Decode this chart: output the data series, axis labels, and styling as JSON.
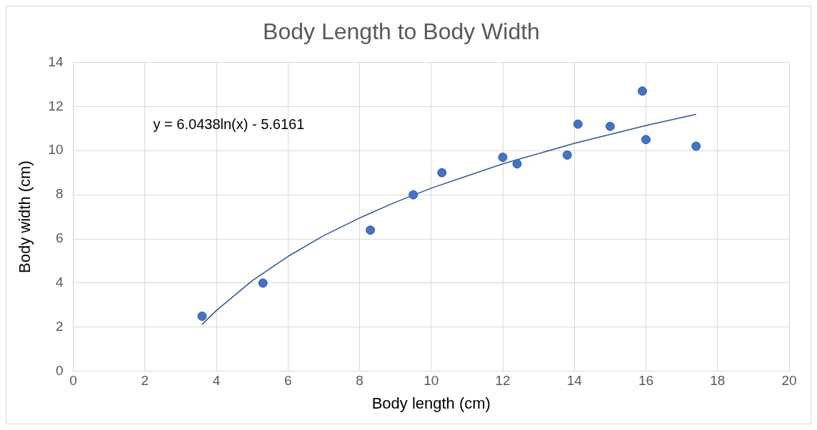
{
  "chart_data": {
    "type": "scatter",
    "title": "Body Length to Body Width",
    "xlabel": "Body length (cm)",
    "ylabel": "Body width (cm)",
    "x": [
      3.6,
      5.3,
      8.3,
      9.5,
      10.3,
      12.0,
      12.4,
      13.8,
      14.1,
      15.0,
      15.9,
      16.0,
      17.4
    ],
    "values": [
      2.5,
      4.0,
      6.4,
      8.0,
      9.0,
      9.7,
      9.4,
      9.8,
      11.2,
      11.1,
      12.7,
      10.5,
      10.2
    ],
    "color": "#4472c4",
    "marker": "circle",
    "series": [
      {
        "type": "line",
        "color": "#2f5597",
        "line_style": "solid",
        "marker": "none",
        "x": [
          3.6,
          4,
          5,
          6,
          7,
          8,
          9,
          10,
          12,
          14,
          16,
          17.4
        ],
        "values": [
          2.13,
          2.76,
          4.11,
          5.21,
          6.15,
          6.95,
          7.66,
          8.3,
          9.4,
          10.33,
          11.14,
          11.65
        ]
      }
    ],
    "xlim": [
      0,
      20
    ],
    "xticks": [
      0,
      2,
      4,
      6,
      8,
      10,
      12,
      14,
      16,
      18,
      20
    ],
    "ylim": [
      0,
      14
    ],
    "yticks": [
      0,
      2,
      4,
      6,
      8,
      10,
      12,
      14
    ],
    "grid": true,
    "legend": false,
    "annotations": [
      "y = 6.0438ln(x) - 5.6161"
    ]
  }
}
